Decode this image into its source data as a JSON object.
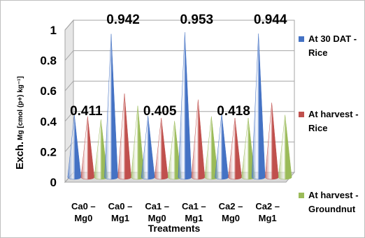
{
  "chart_data": {
    "type": "bar",
    "style": "3d-cone",
    "categories": [
      [
        "Ca0 –",
        "Mg0"
      ],
      [
        "Ca0 –",
        "Mg1"
      ],
      [
        "Ca1 –",
        "Mg0"
      ],
      [
        "Ca1 –",
        "Mg1"
      ],
      [
        "Ca2 –",
        "Mg0"
      ],
      [
        "Ca2 –",
        "Mg1"
      ]
    ],
    "series": [
      {
        "name": [
          "At 30 DAT -",
          "Rice"
        ],
        "color": "#4472c4",
        "values": [
          0.411,
          0.942,
          0.405,
          0.953,
          0.418,
          0.944
        ]
      },
      {
        "name": [
          "At harvest -",
          "Rice"
        ],
        "color": "#c0504d",
        "values": [
          0.4,
          0.55,
          0.39,
          0.51,
          0.39,
          0.49
        ]
      },
      {
        "name": [
          "At harvest -",
          "Groundnut"
        ],
        "color": "#9bbb59",
        "values": [
          0.38,
          0.47,
          0.37,
          0.4,
          0.39,
          0.41
        ]
      }
    ],
    "data_labels": [
      "0.411",
      "0.942",
      "0.405",
      "0.953",
      "0.418",
      "0.944"
    ],
    "xlabel": "Treatments",
    "ylabel_main": "Exch.",
    "ylabel_unit": "Mg [cmol (p+) kg⁻¹]",
    "ylim": [
      0,
      1
    ],
    "yticks": [
      "0",
      "0.2",
      "0.4",
      "0.6",
      "0.8",
      "1"
    ],
    "grid": true,
    "legend_position": "right"
  }
}
